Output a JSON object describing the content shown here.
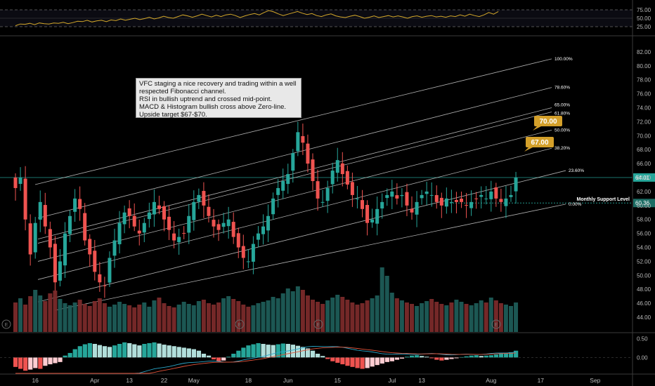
{
  "annotation": {
    "text": "VFC staging a nice recovery and trading within a well respected Fibonacci channel.\nRSI in bullish uptrend and crossed mid-point.\nMACD & Histogram bullish cross above Zero-line.\nUpside target $67-$70."
  },
  "chart_data": [
    {
      "type": "line",
      "name": "rsi-pane",
      "y_ticks": [
        "75.00",
        "50.00",
        "25.00"
      ],
      "ylim": [
        0,
        100
      ],
      "levels": [
        75,
        50,
        25
      ],
      "rsi": [
        28,
        33,
        32,
        35,
        31,
        36,
        34,
        33,
        36,
        35,
        38,
        34,
        37,
        41,
        40,
        44,
        39,
        42,
        44,
        40,
        45,
        43,
        48,
        44,
        47,
        50,
        46,
        49,
        53,
        48,
        51,
        56,
        52,
        50,
        55,
        60,
        57,
        53,
        57,
        62,
        58,
        54,
        59,
        55,
        60,
        62,
        58,
        52,
        57,
        61,
        64,
        60,
        67,
        73,
        69,
        63,
        58,
        62,
        66,
        70,
        65,
        61,
        64,
        58,
        55,
        60,
        63,
        57,
        54,
        52,
        56,
        59,
        55,
        50,
        53,
        57,
        52,
        55,
        58,
        54,
        57,
        54,
        50,
        55,
        57,
        53,
        56,
        58,
        54,
        56,
        53,
        57,
        55,
        60,
        56,
        62,
        58,
        55,
        60,
        67,
        62,
        70
      ],
      "line_color": "#d4a82a"
    },
    {
      "type": "candlestick",
      "name": "price-pane",
      "y_ticks": [
        "82.00",
        "80.00",
        "78.00",
        "76.00",
        "74.00",
        "72.00",
        "70.00",
        "68.00",
        "66.00",
        "64.00",
        "62.00",
        "60.00",
        "58.00",
        "56.00",
        "54.00",
        "52.00",
        "50.00",
        "48.00",
        "46.00",
        "44.00"
      ],
      "ylim": [
        43,
        84
      ],
      "x_tick_labels": [
        "16",
        "Apr",
        "13",
        "22",
        "May",
        "18",
        "Jun",
        "15",
        "Jul",
        "13",
        "Aug",
        "17",
        "Sep"
      ],
      "x_tick_index": [
        4,
        16,
        23,
        30,
        36,
        47,
        55,
        65,
        76,
        82,
        96,
        106,
        117
      ],
      "close": [
        62.5,
        64.0,
        58.0,
        53.0,
        57.5,
        60.5,
        57.0,
        54.0,
        49.0,
        52.0,
        56.0,
        58.5,
        61.0,
        59.5,
        55.0,
        53.0,
        50.5,
        49.0,
        48.5,
        52.5,
        55.0,
        57.5,
        59.0,
        58.5,
        57.0,
        56.0,
        57.5,
        59.0,
        60.5,
        59.5,
        58.0,
        56.5,
        55.0,
        55.5,
        56.0,
        58.5,
        60.5,
        61.5,
        60.0,
        58.5,
        57.0,
        56.5,
        57.5,
        58.0,
        55.5,
        54.0,
        52.5,
        52.0,
        54.5,
        56.0,
        57.0,
        58.5,
        61.0,
        62.5,
        63.5,
        64.5,
        67.5,
        70.5,
        69.0,
        66.0,
        63.5,
        61.0,
        60.5,
        62.5,
        65.0,
        66.5,
        64.5,
        63.0,
        61.5,
        61.0,
        59.5,
        57.5,
        58.0,
        59.5,
        60.5,
        61.5,
        62.0,
        61.0,
        61.5,
        60.0,
        59.0,
        60.5,
        61.5,
        62.0,
        61.5,
        60.5,
        60.0,
        61.0,
        60.5,
        60.5,
        60.5,
        60.0,
        60.5,
        61.0,
        61.5,
        61.0,
        62.0,
        61.0,
        60.5,
        61.0,
        61.5,
        64.0
      ],
      "bull_color": "#26a69a",
      "bear_color": "#ef5350",
      "fib_levels": [
        {
          "label": "100.00%",
          "offset": 0
        },
        {
          "label": "78.60%",
          "offset": 1
        },
        {
          "label": "65.00%",
          "offset": 2
        },
        {
          "label": "61.80%",
          "offset": 3
        },
        {
          "label": "50.00%",
          "offset": 4
        },
        {
          "label": "38.20%",
          "offset": 5
        },
        {
          "label": "23.60%",
          "offset": 6
        },
        {
          "label": "0.00%",
          "offset": 7
        }
      ],
      "targets": [
        "70.00",
        "67.00"
      ],
      "last_price": "64.01",
      "support_label": "Monthly Support Level",
      "support_price": "60.36",
      "support_level": 60.36,
      "last_level": 64.01
    },
    {
      "type": "bar",
      "name": "volume",
      "values": [
        4.2,
        4.8,
        3.9,
        5.1,
        6.0,
        5.2,
        4.4,
        5.5,
        5.9,
        4.7,
        4.1,
        3.8,
        4.2,
        4.6,
        4.0,
        3.7,
        4.4,
        4.8,
        4.1,
        3.6,
        3.9,
        4.3,
        4.0,
        3.8,
        3.5,
        3.9,
        4.2,
        3.6,
        4.5,
        4.9,
        4.1,
        3.7,
        3.5,
        3.9,
        4.3,
        4.0,
        3.8,
        4.4,
        4.6,
        4.1,
        3.9,
        4.2,
        4.8,
        5.1,
        4.7,
        4.4,
        3.9,
        3.6,
        3.8,
        4.1,
        4.3,
        4.5,
        5.0,
        4.8,
        5.5,
        6.2,
        5.8,
        6.5,
        6.0,
        5.2,
        4.6,
        4.3,
        4.0,
        4.5,
        4.9,
        5.3,
        5.0,
        4.6,
        4.2,
        3.9,
        4.1,
        4.5,
        4.8,
        5.2,
        9.2,
        8.0,
        5.6,
        4.8,
        4.5,
        4.2,
        4.0,
        3.7,
        4.1,
        4.4,
        4.7,
        4.3,
        4.0,
        3.8,
        4.2,
        4.6,
        4.3,
        4.0,
        3.8,
        4.1,
        4.5,
        4.2,
        4.9,
        4.5,
        4.1,
        3.9,
        3.7,
        4.2
      ],
      "ylim": [
        0,
        10
      ]
    },
    {
      "type": "bar",
      "name": "macd-pane",
      "y_ticks": [
        "0.50",
        "0.00"
      ],
      "histogram": [
        -0.25,
        -0.3,
        -0.35,
        -0.32,
        -0.28,
        -0.3,
        -0.22,
        -0.18,
        -0.15,
        -0.12,
        0.05,
        0.12,
        0.22,
        0.3,
        0.35,
        0.38,
        0.36,
        0.33,
        0.3,
        0.28,
        0.32,
        0.36,
        0.4,
        0.38,
        0.35,
        0.32,
        0.36,
        0.38,
        0.4,
        0.37,
        0.34,
        0.32,
        0.3,
        0.28,
        0.26,
        0.24,
        0.22,
        0.18,
        0.1,
        0.05,
        -0.05,
        -0.1,
        -0.08,
        0.02,
        0.1,
        0.18,
        0.26,
        0.32,
        0.35,
        0.38,
        0.36,
        0.34,
        0.33,
        0.35,
        0.37,
        0.36,
        0.34,
        0.31,
        0.28,
        0.24,
        0.18,
        0.1,
        0.04,
        -0.04,
        -0.1,
        -0.14,
        -0.18,
        -0.22,
        -0.25,
        -0.28,
        -0.3,
        -0.28,
        -0.24,
        -0.2,
        -0.16,
        -0.12,
        -0.1,
        -0.06,
        -0.03,
        0.02,
        0.05,
        0.06,
        0.04,
        0.02,
        -0.02,
        -0.06,
        -0.08,
        -0.06,
        -0.04,
        -0.02,
        0.01,
        0.03,
        0.05,
        0.06,
        0.04,
        0.05,
        0.06,
        0.08,
        0.1,
        0.12,
        0.14,
        0.18
      ],
      "ylim": [
        -0.42,
        0.62
      ]
    }
  ]
}
